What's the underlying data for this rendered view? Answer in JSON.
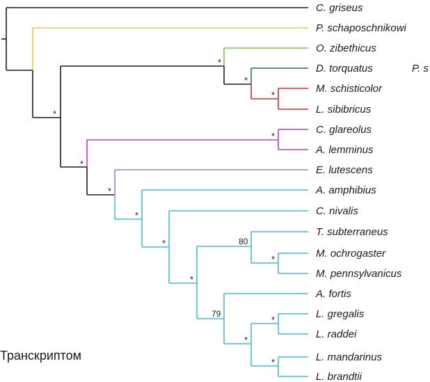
{
  "colors": {
    "black": "#1a1a1a",
    "yellow": "#e6cf45",
    "green": "#7dc241",
    "dark_green": "#1b7d55",
    "red": "#d92b2b",
    "magenta": "#c33ac0",
    "purple": "#a57bd8",
    "cyan": "#40bfe0"
  },
  "taxa": {
    "c_griseus": "C. griseus",
    "p_schaposchnikowi": "P. schaposchnikowi",
    "o_zibethicus": "O. zibethicus",
    "d_torquatus": "D. torquatus",
    "m_schisticolor": "M. schisticolor",
    "l_sibibricus": "L. sibibricus",
    "c_glareolus": "C. glareolus",
    "a_lemminus": "A. lemminus",
    "e_lutescens": "E. lutescens",
    "a_amphibius": "A. amphibius",
    "c_nivalis": "C. nivalis",
    "t_subterraneus": "T. subterraneus",
    "m_ochrogaster": "M. ochrogaster",
    "m_pennsylvanicus": "M. pennsylvanicus",
    "a_fortis": "A. fortis",
    "l_gregalis": "L. gregalis",
    "l_raddei": "L. raddei",
    "l_mandarinus": "L. mandarinus",
    "l_brandtii": "L. brandtii"
  },
  "cut_label": "P. s",
  "support": {
    "star": "*",
    "v80": "80",
    "v79": "79"
  },
  "caption": "Транскриптом"
}
